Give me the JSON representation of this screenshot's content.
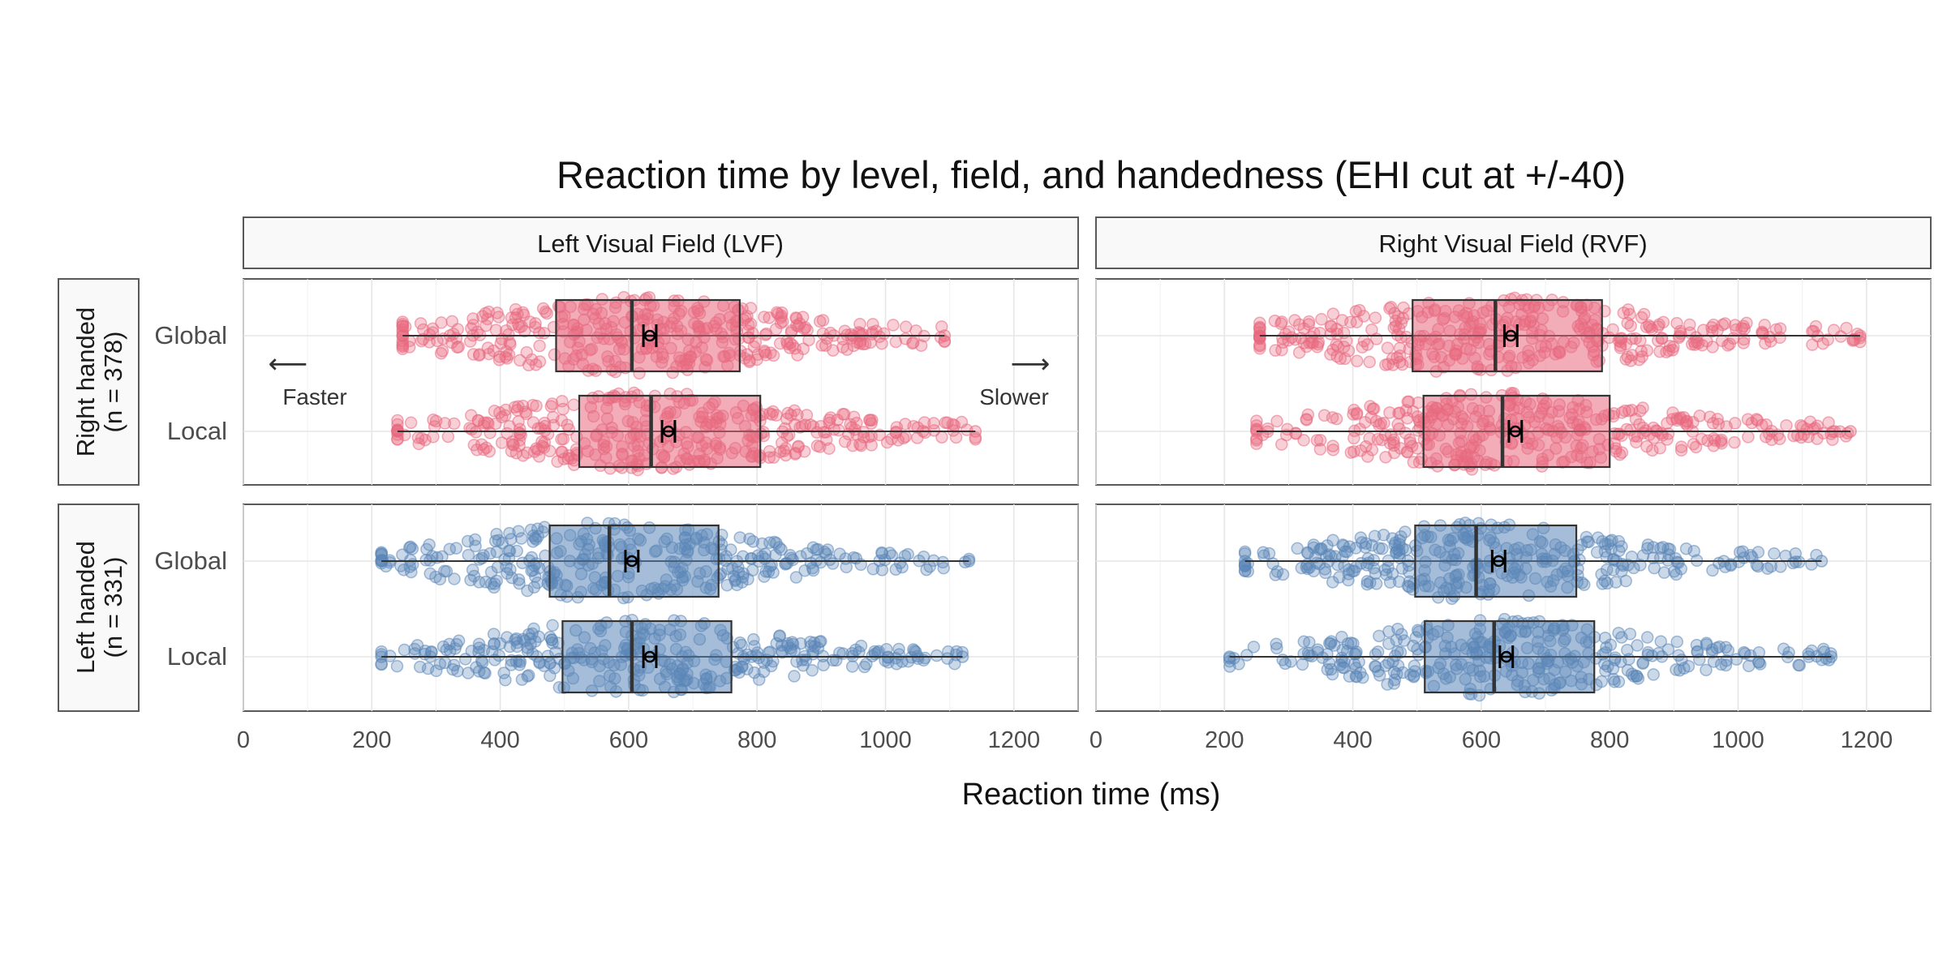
{
  "chart_data": {
    "type": "box-dot",
    "title": "Reaction time by level, field, and handedness (EHI cut at +/-40)",
    "xlabel": "Reaction time (ms)",
    "xlim": [
      0,
      1300
    ],
    "xticks": [
      0,
      200,
      400,
      600,
      800,
      1000,
      1200
    ],
    "columns": [
      "Left Visual Field (LVF)",
      "Right Visual Field (RVF)"
    ],
    "rows": [
      {
        "line1": "Right handed",
        "line2": "(n = 378)",
        "color": "#e8697f",
        "n": 378
      },
      {
        "line1": "Left handed",
        "line2": "(n = 331)",
        "color": "#5b86b8",
        "n": 331
      }
    ],
    "categories": [
      "Global",
      "Local"
    ],
    "annotations": {
      "faster": "Faster",
      "slower": "Slower",
      "left_arrow": "⟵",
      "right_arrow": "⟶"
    },
    "grid": true,
    "panels": [
      {
        "row": 0,
        "col": 0,
        "level": "Global",
        "min": 248,
        "q1": 487,
        "median": 605,
        "q3": 773,
        "max": 1092,
        "mean": 633,
        "ci": [
          623,
          643
        ]
      },
      {
        "row": 0,
        "col": 0,
        "level": "Local",
        "min": 240,
        "q1": 523,
        "median": 635,
        "q3": 805,
        "max": 1140,
        "mean": 662,
        "ci": [
          652,
          672
        ]
      },
      {
        "row": 0,
        "col": 1,
        "level": "Global",
        "min": 255,
        "q1": 493,
        "median": 622,
        "q3": 788,
        "max": 1190,
        "mean": 646,
        "ci": [
          636,
          656
        ]
      },
      {
        "row": 0,
        "col": 1,
        "level": "Local",
        "min": 250,
        "q1": 510,
        "median": 633,
        "q3": 800,
        "max": 1175,
        "mean": 653,
        "ci": [
          643,
          663
        ]
      },
      {
        "row": 1,
        "col": 0,
        "level": "Global",
        "min": 215,
        "q1": 477,
        "median": 570,
        "q3": 740,
        "max": 1130,
        "mean": 605,
        "ci": [
          595,
          615
        ]
      },
      {
        "row": 1,
        "col": 0,
        "level": "Local",
        "min": 215,
        "q1": 497,
        "median": 605,
        "q3": 760,
        "max": 1120,
        "mean": 633,
        "ci": [
          623,
          643
        ]
      },
      {
        "row": 1,
        "col": 1,
        "level": "Global",
        "min": 232,
        "q1": 497,
        "median": 592,
        "q3": 748,
        "max": 1130,
        "mean": 627,
        "ci": [
          617,
          637
        ]
      },
      {
        "row": 1,
        "col": 1,
        "level": "Local",
        "min": 208,
        "q1": 512,
        "median": 620,
        "q3": 776,
        "max": 1145,
        "mean": 639,
        "ci": [
          629,
          649
        ]
      }
    ]
  }
}
